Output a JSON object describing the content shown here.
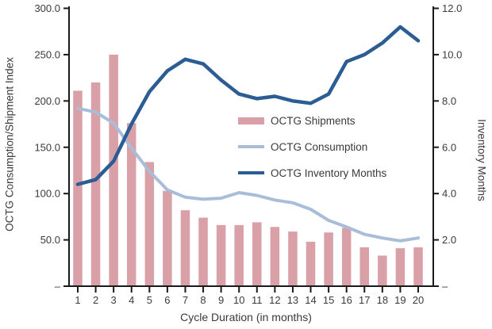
{
  "chart_data": {
    "type": "bar",
    "subtype": "combo-bar-line-dual-axis",
    "title": "",
    "categories": [
      "1",
      "2",
      "3",
      "4",
      "5",
      "6",
      "7",
      "8",
      "9",
      "10",
      "11",
      "12",
      "13",
      "14",
      "15",
      "16",
      "17",
      "18",
      "19",
      "20"
    ],
    "series": [
      {
        "name": "OCTG Shipments",
        "type": "bar",
        "axis": "left",
        "color": "#D9A0A7",
        "values": [
          211,
          220,
          250,
          176,
          134,
          103,
          82,
          74,
          66,
          66,
          69,
          64,
          59,
          48,
          58,
          63,
          42,
          33,
          41,
          42
        ]
      },
      {
        "name": "OCTG Consumption",
        "type": "line",
        "axis": "left",
        "color": "#A9BDD8",
        "values": [
          192,
          188,
          176,
          149,
          124,
          104,
          96,
          94,
          95,
          101,
          98,
          93,
          90,
          83,
          71,
          64,
          56,
          52,
          49,
          52
        ]
      },
      {
        "name": "OCTG Inventory Months",
        "type": "line",
        "axis": "right",
        "color": "#2B5C93",
        "values": [
          4.4,
          4.6,
          5.4,
          7.0,
          8.4,
          9.3,
          9.8,
          9.6,
          8.9,
          8.3,
          8.1,
          8.2,
          8.0,
          7.9,
          8.3,
          9.7,
          10.0,
          10.5,
          11.2,
          10.6
        ]
      }
    ],
    "left_axis": {
      "title": "OCTG Consumption/Shipment Index",
      "min": 0,
      "max": 300,
      "tick_step": 50,
      "tick_labels": [
        "–",
        "50.0",
        "100.0",
        "150.0",
        "200.0",
        "250.0",
        "300.0"
      ]
    },
    "right_axis": {
      "title": "Inventory Months",
      "min": 0,
      "max": 12,
      "tick_step": 2,
      "tick_labels": [
        "–",
        "2.0",
        "4.0",
        "6.0",
        "8.0",
        "10.0",
        "12.0"
      ]
    },
    "x_axis": {
      "title": "Cycle Duration (in months)",
      "labels": [
        "1",
        "2",
        "3",
        "4",
        "5",
        "6",
        "7",
        "8",
        "9",
        "10",
        "11",
        "12",
        "13",
        "14",
        "15",
        "16",
        "17",
        "18",
        "19",
        "20"
      ]
    },
    "legend": {
      "position": "inside-middle",
      "items": [
        "OCTG Shipments",
        "OCTG Consumption",
        "OCTG Inventory Months"
      ]
    },
    "grid": false,
    "axis_color": "#1a1a1a",
    "text_color": "#3a3a3a"
  }
}
